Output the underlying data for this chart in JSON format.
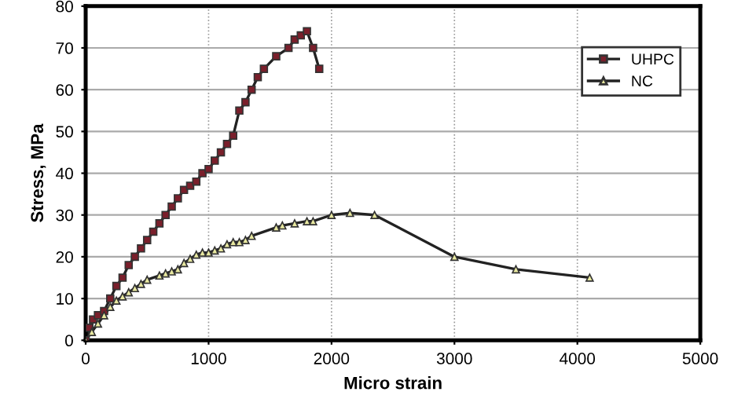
{
  "chart_data": {
    "type": "line",
    "xlabel": "Micro strain",
    "ylabel": "Stress, MPa",
    "xlim": [
      0,
      5000
    ],
    "xticks": [
      0,
      1000,
      2000,
      3000,
      4000,
      5000
    ],
    "ylim": [
      0,
      80
    ],
    "yticks": [
      0,
      10,
      20,
      30,
      40,
      50,
      60,
      70,
      80
    ],
    "grid": true,
    "legend": "top right",
    "series": [
      {
        "name": "UHPC",
        "color": "#7a1f2b",
        "marker": "square",
        "x": [
          0,
          30,
          60,
          100,
          150,
          200,
          250,
          300,
          350,
          400,
          450,
          500,
          550,
          600,
          650,
          700,
          750,
          800,
          850,
          900,
          950,
          1000,
          1050,
          1100,
          1150,
          1200,
          1250,
          1300,
          1350,
          1400,
          1450,
          1550,
          1650,
          1700,
          1750,
          1800,
          1850,
          1900
        ],
        "values": [
          0,
          3,
          5,
          6,
          7,
          10,
          13,
          15,
          18,
          20,
          22,
          24,
          26,
          28,
          30,
          32,
          34,
          36,
          37,
          38,
          40,
          41,
          43,
          45,
          47,
          49,
          55,
          57,
          60,
          63,
          65,
          68,
          70,
          72,
          73,
          74,
          70,
          65
        ]
      },
      {
        "name": "NC",
        "color": "#e8e8a0",
        "marker": "triangle",
        "x": [
          0,
          50,
          100,
          150,
          200,
          250,
          300,
          350,
          400,
          450,
          500,
          600,
          650,
          700,
          750,
          800,
          850,
          900,
          950,
          1000,
          1050,
          1100,
          1150,
          1200,
          1250,
          1300,
          1350,
          1550,
          1600,
          1700,
          1800,
          1850,
          2000,
          2150,
          2350,
          3000,
          3500,
          4100
        ],
        "values": [
          0,
          2,
          4,
          6,
          8,
          9.5,
          10.5,
          11.5,
          12.5,
          13.5,
          14.5,
          15.5,
          16,
          16.5,
          17,
          18.5,
          19.5,
          20.5,
          21,
          21,
          21.5,
          22,
          23,
          23.5,
          23.5,
          24,
          25,
          27,
          27.5,
          28,
          28.5,
          28.5,
          30,
          30.5,
          30,
          20,
          17,
          15
        ]
      }
    ]
  }
}
